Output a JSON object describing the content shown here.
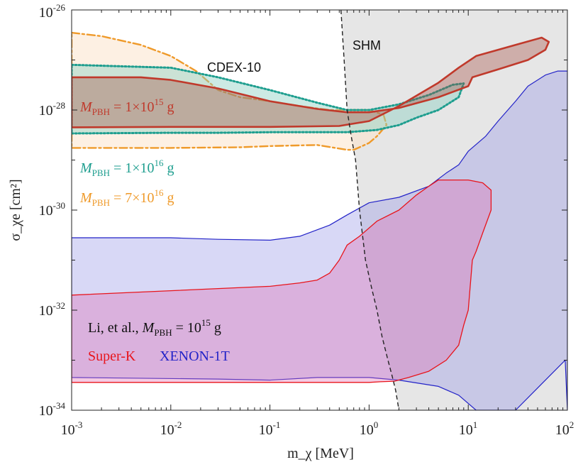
{
  "chart_data": {
    "type": "area",
    "xscale": "log",
    "yscale": "log",
    "xlim": [
      0.001,
      100
    ],
    "ylim": [
      1e-34,
      1e-26
    ],
    "xlabel": "m_χ [MeV]",
    "ylabel": "σ_χe [cm²]",
    "x_ticks": [
      {
        "base": "10",
        "exp": "-3"
      },
      {
        "base": "10",
        "exp": "-2"
      },
      {
        "base": "10",
        "exp": "-1"
      },
      {
        "base": "10",
        "exp": "0"
      },
      {
        "base": "10",
        "exp": "1"
      },
      {
        "base": "10",
        "exp": "2"
      }
    ],
    "y_ticks": [
      {
        "base": "10",
        "exp": "-34"
      },
      {
        "base": "10",
        "exp": "-32"
      },
      {
        "base": "10",
        "exp": "-30"
      },
      {
        "base": "10",
        "exp": "-28"
      },
      {
        "base": "10",
        "exp": "-26"
      }
    ],
    "annotations": {
      "shm": "SHM",
      "cdex": "CDEX-10",
      "li_prefix": "Li, et al., ",
      "li_M": "M",
      "li_sub": "PBH",
      "li_val": " = 10",
      "li_exp": "15",
      "li_unit": " g",
      "superk": "Super-K",
      "xenon": "XENON-1T"
    },
    "pbh_labels": [
      {
        "M": "M",
        "sub": "PBH",
        "eq": " = 1×10",
        "exp": "15",
        "unit": " g",
        "color": "#c0392b"
      },
      {
        "M": "M",
        "sub": "PBH",
        "eq": " = 1×10",
        "exp": "16",
        "unit": " g",
        "color": "#1e9e8f"
      },
      {
        "M": "M",
        "sub": "PBH",
        "eq": " = 7×10",
        "exp": "16",
        "unit": " g",
        "color": "#ef9a2a"
      }
    ],
    "series": [
      {
        "name": "SHM region",
        "style": "grey-fill-dashed",
        "boundary_x": [
          0.52,
          0.56,
          0.6,
          0.66,
          0.73,
          0.8,
          0.92,
          1.05,
          1.2,
          1.35,
          1.55,
          1.7,
          1.85,
          2.0
        ],
        "boundary_y": [
          1e-26,
          1e-27,
          1e-28,
          3e-29,
          1e-29,
          1e-30,
          1e-31,
          3e-32,
          1e-32,
          3e-33,
          1e-33,
          5e-34,
          2.5e-34,
          1e-34
        ]
      },
      {
        "name": "M_PBH = 7×10^16 g",
        "color": "#ef9a2a",
        "style": "dash-dot",
        "x": [
          0.001,
          0.002,
          0.005,
          0.01,
          0.018,
          0.03,
          0.05,
          0.1,
          0.2,
          0.4,
          0.7,
          1.0,
          1.4,
          1.5,
          1.2,
          1.0,
          0.8,
          0.7,
          0.6,
          0.5,
          0.3,
          0.1,
          0.05,
          0.01,
          0.001
        ],
        "y": [
          3.5e-27,
          3e-27,
          2e-27,
          1.2e-27,
          6e-28,
          2.5e-28,
          1.8e-28,
          1.5e-28,
          1.2e-28,
          1e-28,
          1e-28,
          1e-28,
          8e-29,
          5e-29,
          3e-29,
          2.2e-29,
          1.8e-29,
          1.6e-29,
          1.6e-29,
          1.7e-29,
          2e-29,
          1.9e-29,
          1.8e-29,
          1.75e-29,
          1.75e-29
        ]
      },
      {
        "name": "M_PBH = 1×10^16 g",
        "color": "#1e9e8f",
        "style": "dotted",
        "x": [
          0.001,
          0.003,
          0.01,
          0.03,
          0.1,
          0.3,
          0.6,
          1.0,
          2.0,
          4.0,
          7.0,
          9.0,
          8.0,
          5.0,
          3.0,
          2.0,
          1.2,
          0.6,
          0.3,
          0.1,
          0.03,
          0.01,
          0.001
        ],
        "y": [
          8e-28,
          7.5e-28,
          7e-28,
          4.5e-28,
          2.5e-28,
          1.4e-28,
          1e-28,
          1e-28,
          1.3e-28,
          2e-28,
          3.2e-28,
          3.4e-28,
          1.8e-28,
          1e-28,
          7e-29,
          5e-29,
          4e-29,
          3.6e-29,
          3.6e-29,
          3.6e-29,
          3.5e-29,
          3.5e-29,
          3.4e-29
        ]
      },
      {
        "name": "M_PBH = 1×10^15 g",
        "color": "#c0392b",
        "style": "solid",
        "x": [
          0.001,
          0.005,
          0.01,
          0.03,
          0.1,
          0.3,
          0.6,
          1.0,
          2.0,
          5.0,
          10.0,
          11.0,
          20.0,
          40.0,
          60.0,
          65.0,
          55.0,
          30.0,
          12.0,
          8.0,
          5.0,
          2.0,
          1.0,
          0.5,
          0.1,
          0.01,
          0.001
        ],
        "y": [
          4.5e-28,
          4.5e-28,
          4e-28,
          2.7e-28,
          1.5e-28,
          1.05e-28,
          9e-29,
          9e-29,
          1.1e-28,
          1.8e-28,
          3e-28,
          4.5e-28,
          6.5e-28,
          1e-27,
          1.6e-27,
          2.3e-27,
          2.8e-27,
          2e-27,
          1.2e-27,
          7e-28,
          3.5e-28,
          1.2e-28,
          6e-29,
          4.8e-29,
          4.6e-29,
          4.6e-29,
          4.5e-29
        ]
      },
      {
        "name": "Super-K",
        "color": "#e8141b",
        "style": "solid-fill",
        "x": [
          0.001,
          0.1,
          0.2,
          0.3,
          0.4,
          0.5,
          0.6,
          0.8,
          1.2,
          2.0,
          3.0,
          4.0,
          5.0,
          6.0,
          10.0,
          14.0,
          17.0,
          17.0,
          14.0,
          12.0,
          11.0,
          10.0,
          9.0,
          8.0,
          6.0,
          4.0,
          2.5,
          1.8,
          1.3,
          1.0,
          0.5,
          0.1,
          0.01,
          0.001
        ],
        "y": [
          2e-32,
          3e-32,
          3.5e-32,
          4e-32,
          5.5e-32,
          1e-31,
          2e-31,
          3e-31,
          6e-31,
          1e-30,
          2e-30,
          3e-30,
          4e-30,
          4e-30,
          4e-30,
          3.5e-30,
          2.5e-30,
          1e-30,
          3.5e-31,
          1.5e-31,
          1e-31,
          1e-32,
          5e-33,
          2e-33,
          1e-33,
          6e-34,
          4.5e-34,
          3.8e-34,
          3.7e-34,
          3.6e-34,
          3.6e-34,
          3.6e-34,
          3.6e-34,
          3.6e-34
        ]
      },
      {
        "name": "XENON-1T",
        "color": "#2323c8",
        "style": "solid-fill",
        "x": [
          0.001,
          0.01,
          0.03,
          0.1,
          0.2,
          0.4,
          0.6,
          1.0,
          2.0,
          4.0,
          6.0,
          8.0,
          10.0,
          15.0,
          20.0,
          30.0,
          40.0,
          60.0,
          80.0,
          100.0,
          100.0,
          95.0,
          30.0,
          12.0,
          8.0,
          5.0,
          2.0,
          1.0,
          0.3,
          0.1,
          0.03,
          0.001
        ],
        "y": [
          2.8e-31,
          2.8e-31,
          2.6e-31,
          2.5e-31,
          3e-31,
          5e-31,
          8e-31,
          1.4e-30,
          1.8e-30,
          3e-30,
          5.5e-30,
          8e-30,
          1.5e-29,
          3e-29,
          6e-29,
          1.5e-28,
          3e-28,
          5e-28,
          6e-28,
          6e-28,
          1e-34,
          1e-33,
          1e-34,
          1e-34,
          2e-34,
          3e-34,
          4e-34,
          4.5e-34,
          4.5e-34,
          4e-34,
          4.2e-34,
          4.5e-34
        ]
      }
    ]
  }
}
